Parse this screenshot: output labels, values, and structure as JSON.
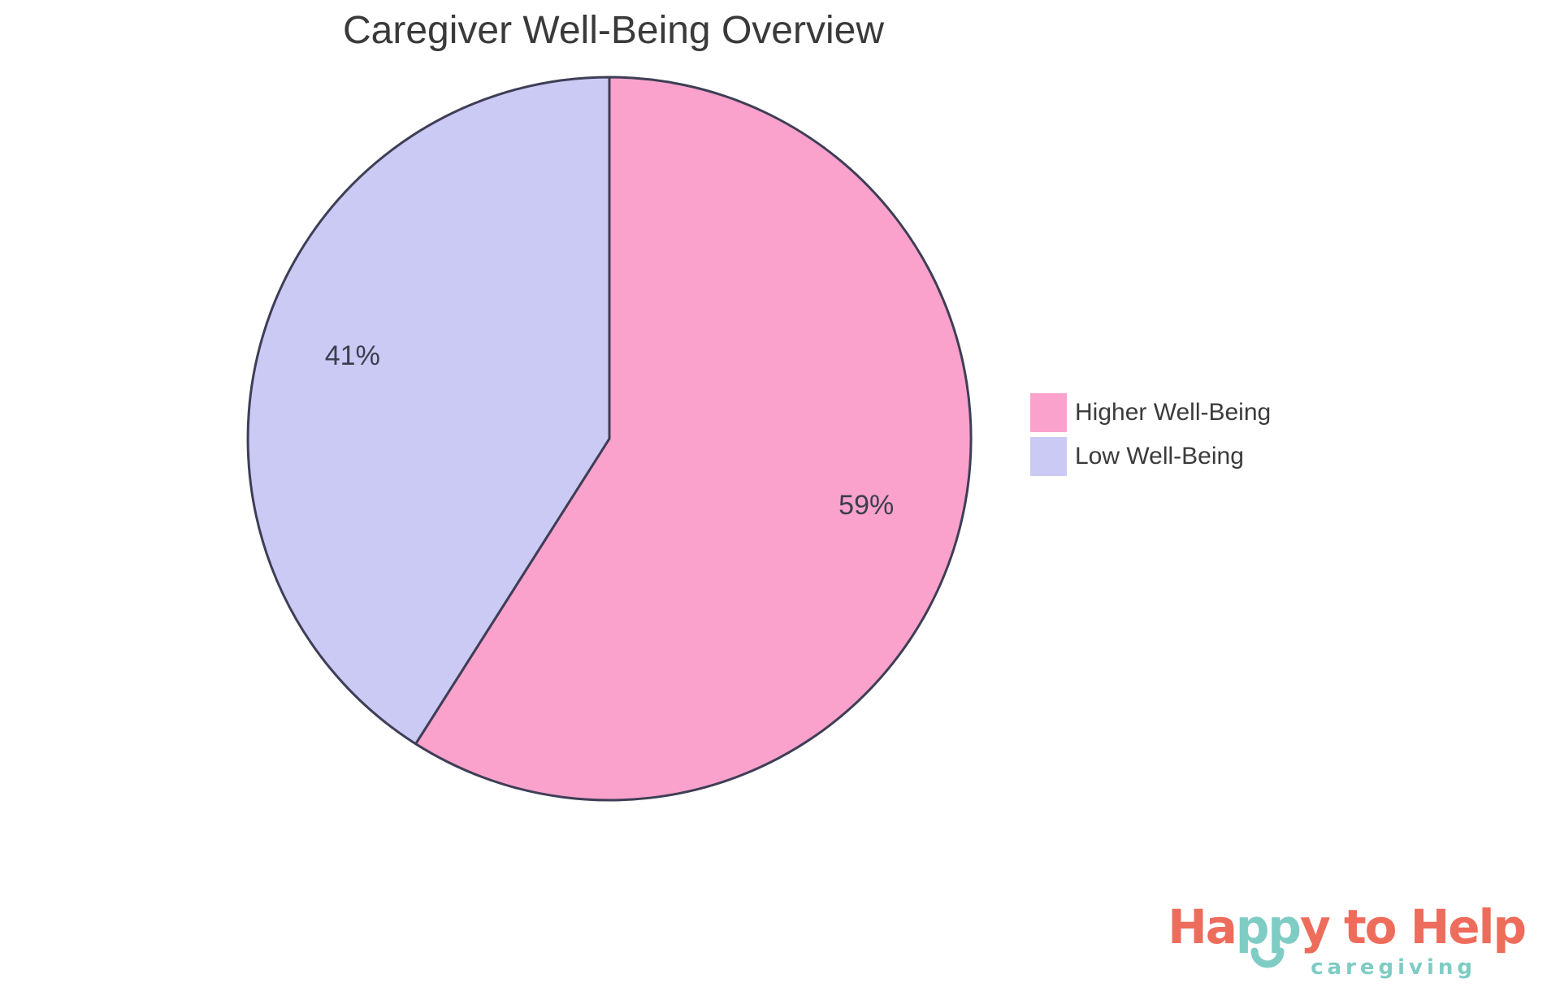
{
  "chart_data": {
    "type": "pie",
    "title": "Caregiver Well-Being Overview",
    "categories": [
      "Higher Well-Being",
      "Low Well-Being"
    ],
    "values": [
      59,
      41
    ],
    "labels": [
      "59%",
      "41%"
    ],
    "colors": [
      "#FAA2CC",
      "#CACAF5"
    ],
    "outline_color": "#3E3E56",
    "label_color": "#3D3D4F",
    "start_angle": "12 o'clock",
    "direction": "clockwise",
    "legend_position": "right"
  },
  "logo": {
    "word_parts": [
      {
        "text": "Ha",
        "color": "#EE6C5B"
      },
      {
        "text": "pp",
        "color": "#7ECCC4"
      },
      {
        "text": "y to Help",
        "color": "#EE6C5B"
      }
    ],
    "subtitle": "caregiving",
    "subtitle_color": "#7ECCC4",
    "smile_color": "#7ECCC4"
  }
}
